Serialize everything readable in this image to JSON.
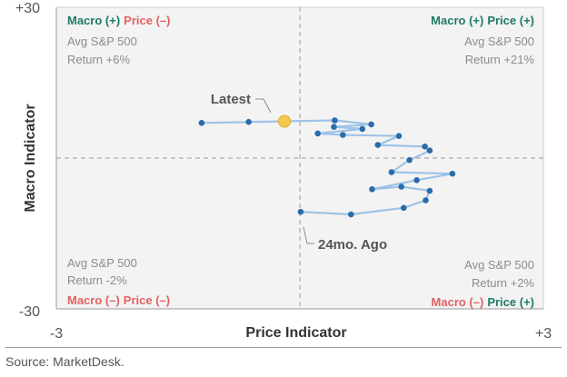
{
  "chart_data": {
    "type": "scatter",
    "xlabel": "Price Indicator",
    "ylabel": "Macro Indicator",
    "xlim": [
      -3,
      3
    ],
    "ylim": [
      -30,
      30
    ],
    "x_ticks": [
      "-3",
      "+3"
    ],
    "y_ticks": [
      "+30",
      "-30"
    ],
    "grid": false,
    "reference_lines": {
      "x": 0,
      "y": 0,
      "style": "dashed"
    },
    "quadrants": {
      "top_left": {
        "macro": "Macro (+)",
        "price": "Price (–)",
        "line1": "Avg S&P 500",
        "line2": "Return +6%"
      },
      "top_right": {
        "macro": "Macro (+)",
        "price": "Price (+)",
        "line1": "Avg S&P 500",
        "line2": "Return +21%"
      },
      "bottom_left": {
        "macro": "Macro (–)",
        "price": "Price (–)",
        "line1": "Avg S&P 500",
        "line2": "Return -2%"
      },
      "bottom_right": {
        "macro": "Macro (–)",
        "price": "Price (+)",
        "line1": "Avg S&P 500",
        "line2": "Return +2%"
      }
    },
    "annotations": {
      "latest": "Latest",
      "oldest": "24mo. Ago"
    },
    "series": [
      {
        "points": [
          {
            "x": 0.01,
            "y": -10.7
          },
          {
            "x": 0.63,
            "y": -11.2
          },
          {
            "x": 1.28,
            "y": -9.9
          },
          {
            "x": 1.55,
            "y": -8.4
          },
          {
            "x": 1.6,
            "y": -6.5
          },
          {
            "x": 1.25,
            "y": -5.7
          },
          {
            "x": 0.89,
            "y": -6.2
          },
          {
            "x": 1.44,
            "y": -4.4
          },
          {
            "x": 1.88,
            "y": -3.1
          },
          {
            "x": 1.13,
            "y": -2.8
          },
          {
            "x": 1.35,
            "y": -0.4
          },
          {
            "x": 1.6,
            "y": 1.5
          },
          {
            "x": 1.54,
            "y": 2.3
          },
          {
            "x": 0.96,
            "y": 2.6
          },
          {
            "x": 1.22,
            "y": 4.4
          },
          {
            "x": 0.53,
            "y": 4.6
          },
          {
            "x": 0.22,
            "y": 4.9
          },
          {
            "x": 0.77,
            "y": 5.8
          },
          {
            "x": 0.42,
            "y": 6.2
          },
          {
            "x": 0.88,
            "y": 6.7
          },
          {
            "x": 0.43,
            "y": 7.5
          },
          {
            "x": -0.63,
            "y": 7.2
          },
          {
            "x": -0.19,
            "y": 7.3
          },
          {
            "x": -1.21,
            "y": 7.0
          }
        ],
        "latest_index": 22,
        "line_color": "#9ec3e6",
        "point_color": "#2c6bab",
        "latest_color": "#f6c94c"
      }
    ]
  },
  "source": "Source: MarketDesk.",
  "colors": {
    "green": "#1e7a66",
    "red": "#e36161",
    "gray_text": "#8c8c8c",
    "dark_text": "#333333",
    "plot_bg": "#f3f3f3",
    "axis_line": "#9a9a9a"
  }
}
